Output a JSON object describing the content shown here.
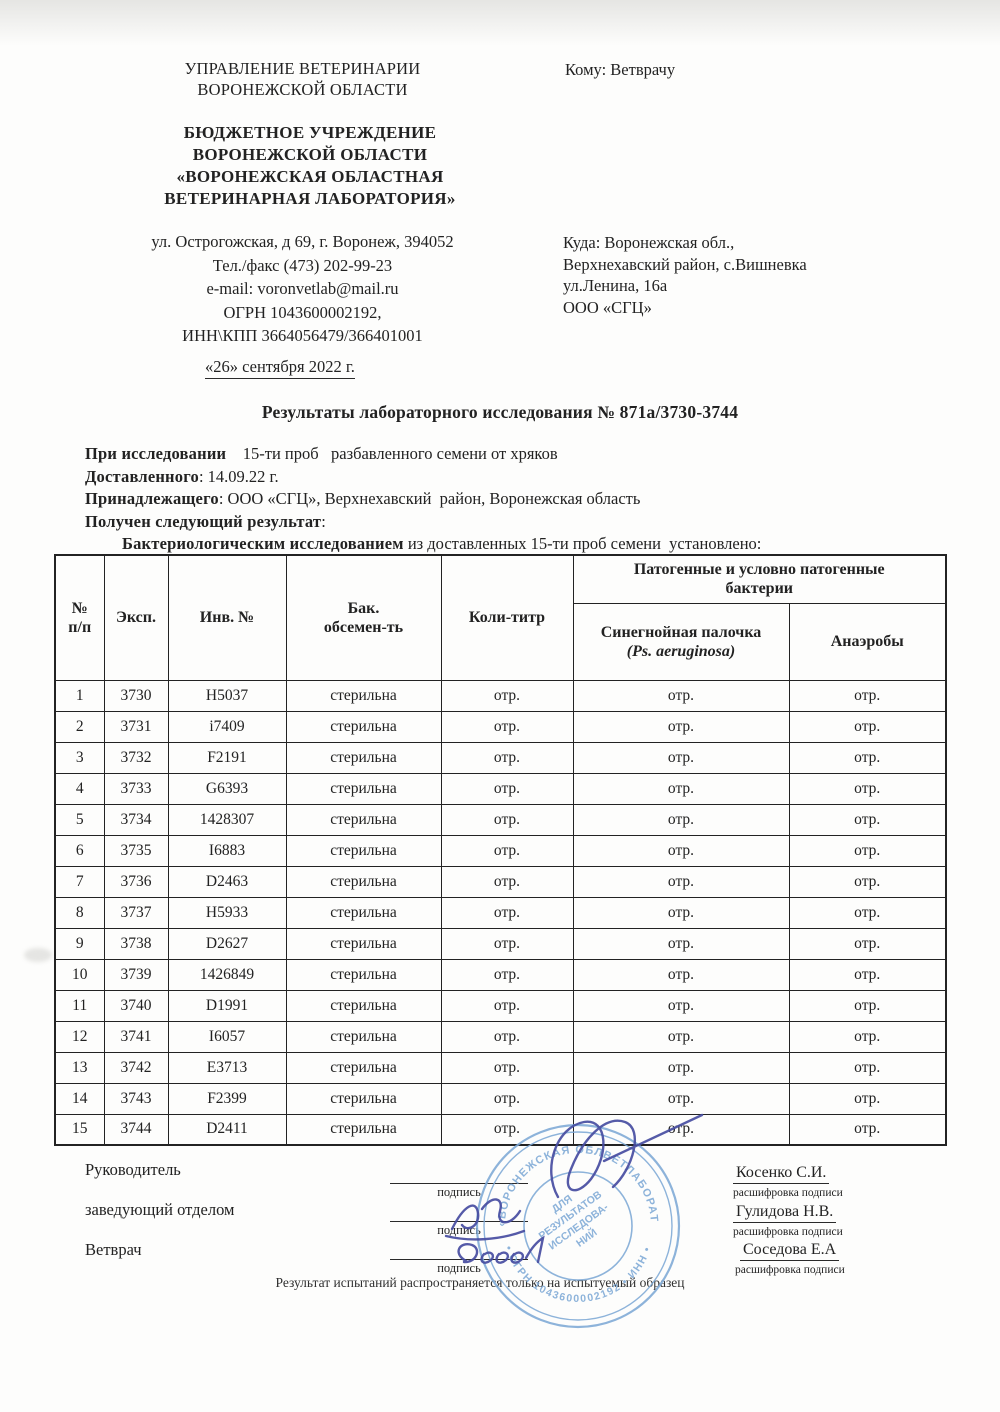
{
  "header": {
    "dept_lines": [
      "УПРАВЛЕНИЕ ВЕТЕРИНАРИИ",
      "ВОРОНЕЖСКОЙ ОБЛАСТИ"
    ],
    "to_line": "Кому: Ветврачу",
    "org_lines": [
      "БЮДЖЕТНОЕ УЧРЕЖДЕНИЕ",
      "ВОРОНЕЖСКОЙ ОБЛАСТИ",
      "«ВОРОНЕЖСКАЯ ОБЛАСТНАЯ",
      "ВЕТЕРИНАРНАЯ ЛАБОРАТОРИЯ»"
    ],
    "address_lines": [
      "ул. Острогожская, д 69, г. Воронеж, 394052",
      "Тел./факс  (473) 202-99-23",
      "e-mail: voronvetlab@mail.ru",
      "ОГРН 1043600002192,",
      "ИНН\\КПП 3664056479/366401001"
    ],
    "dest_lines": [
      "Куда: Воронежская обл.,",
      "Верхнехавский район, с.Вишневка",
      "ул.Ленина, 16а",
      "ООО «СГЦ»"
    ],
    "date_line": "«26» сентября 2022 г."
  },
  "title": "Результаты лабораторного исследования № 871а/3730-3744",
  "info": [
    {
      "label": "При исследовании",
      "text": "    15-ти проб   разбавленного семени от хряков"
    },
    {
      "label": "Доставленного",
      "text": ": 14.09.22 г."
    },
    {
      "label": "Принадлежащего",
      "text": ": ООО «СГЦ», Верхнехавский  район, Воронежская область"
    },
    {
      "label": "Получен следующий результат",
      "text": ":"
    },
    {
      "label": "Бактериологическим исследованием",
      "text": " из доставленных 15-ти проб семени  установлено:",
      "indent": true
    }
  ],
  "table": {
    "headers": {
      "num": "№\nп/п",
      "exp": "Эксп.",
      "inv": "Инв.  №",
      "bak": "Бак.\nобсемен-ть",
      "koli": "Коли-титр",
      "pathogenic": "Патогенные и условно патогенные\nбактерии",
      "pseudomonas": "Синегнойная палочка",
      "pseudomonas_latin": "(Ps. aeruginosa)",
      "anaerobes": "Анаэробы"
    },
    "rows": [
      [
        "1",
        "3730",
        "H5037",
        "стерильна",
        "отр.",
        "отр.",
        "отр."
      ],
      [
        "2",
        "3731",
        "i7409",
        "стерильна",
        "отр.",
        "отр.",
        "отр."
      ],
      [
        "3",
        "3732",
        "F2191",
        "стерильна",
        "отр.",
        "отр.",
        "отр."
      ],
      [
        "4",
        "3733",
        "G6393",
        "стерильна",
        "отр.",
        "отр.",
        "отр."
      ],
      [
        "5",
        "3734",
        "1428307",
        "стерильна",
        "отр.",
        "отр.",
        "отр."
      ],
      [
        "6",
        "3735",
        "I6883",
        "стерильна",
        "отр.",
        "отр.",
        "отр."
      ],
      [
        "7",
        "3736",
        "D2463",
        "стерильна",
        "отр.",
        "отр.",
        "отр."
      ],
      [
        "8",
        "3737",
        "H5933",
        "стерильна",
        "отр.",
        "отр.",
        "отр."
      ],
      [
        "9",
        "3738",
        "D2627",
        "стерильна",
        "отр.",
        "отр.",
        "отр."
      ],
      [
        "10",
        "3739",
        "1426849",
        "стерильна",
        "отр.",
        "отр.",
        "отр."
      ],
      [
        "11",
        "3740",
        "D1991",
        "стерильна",
        "отр.",
        "отр.",
        "отр."
      ],
      [
        "12",
        "3741",
        "I6057",
        "стерильна",
        "отр.",
        "отр.",
        "отр."
      ],
      [
        "13",
        "3742",
        "E3713",
        "стерильна",
        "отр.",
        "отр.",
        "отр."
      ],
      [
        "14",
        "3743",
        "F2399",
        "стерильна",
        "отр.",
        "отр.",
        "отр."
      ],
      [
        "15",
        "3744",
        "D2411",
        "стерильна",
        "отр.",
        "отр.",
        "отр."
      ]
    ]
  },
  "signatures": {
    "sign_caption": "подпись",
    "name_caption": "расшифровка подписи",
    "rows": [
      {
        "role": "Руководитель",
        "name": "Косенко С.И."
      },
      {
        "role": "заведующий отделом",
        "name": "Гулидова Н.В."
      },
      {
        "role": "Ветврач",
        "name": "Соседова Е.А"
      }
    ]
  },
  "footer_note": "Результат испытаний распространяется только на испытуемый образец",
  "stamp": {
    "ring_top": "БУВО «ВОРОНЕЖСКАЯ ОБЛВЕТЛАБОРАТОРИЯ»",
    "ring_bottom": "• ОГРН 1043600002192 • ИНН •",
    "center_lines": [
      "ДЛЯ",
      "РЕЗУЛЬТАТОВ",
      "ИССЛЕДОВА-",
      "НИЙ"
    ],
    "color": "#7ea9d6",
    "ink_color": "#474da1"
  }
}
